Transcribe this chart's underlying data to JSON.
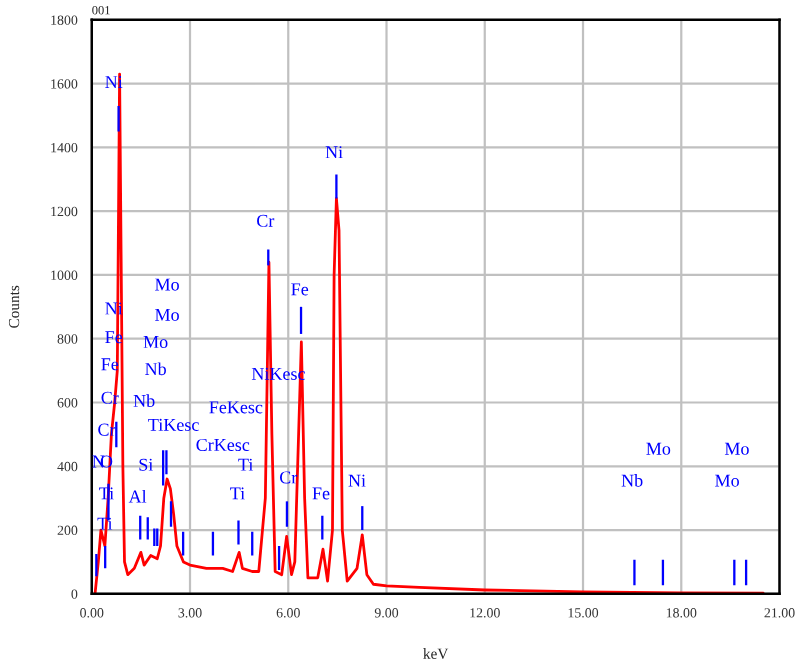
{
  "chart_data": {
    "type": "line",
    "title": "001",
    "xlabel": "keV",
    "ylabel": "Counts",
    "xlim": [
      0,
      21
    ],
    "ylim": [
      0,
      1800
    ],
    "xticks": [
      {
        "value": 0,
        "label": "0.00"
      },
      {
        "value": 3,
        "label": "3.00"
      },
      {
        "value": 6,
        "label": "6.00"
      },
      {
        "value": 9,
        "label": "9.00"
      },
      {
        "value": 12,
        "label": "12.00"
      },
      {
        "value": 15,
        "label": "15.00"
      },
      {
        "value": 18,
        "label": "18.00"
      },
      {
        "value": 21,
        "label": "21.00"
      }
    ],
    "yticks": [
      0,
      200,
      400,
      600,
      800,
      1000,
      1200,
      1400,
      1600,
      1800
    ],
    "grid": true,
    "legend": false,
    "series": [
      {
        "color": "#ff0000",
        "x": [
          0.1,
          0.2,
          0.28,
          0.4,
          0.5,
          0.6,
          0.7,
          0.78,
          0.85,
          0.95,
          1.0,
          1.1,
          1.3,
          1.5,
          1.6,
          1.8,
          2.0,
          2.1,
          2.2,
          2.3,
          2.4,
          2.5,
          2.6,
          2.8,
          3.0,
          3.5,
          4.0,
          4.3,
          4.5,
          4.6,
          4.9,
          5.1,
          5.3,
          5.41,
          5.5,
          5.6,
          5.8,
          5.95,
          6.1,
          6.2,
          6.4,
          6.5,
          6.6,
          6.9,
          7.06,
          7.2,
          7.35,
          7.4,
          7.47,
          7.55,
          7.65,
          7.8,
          8.1,
          8.26,
          8.4,
          8.6,
          9.0,
          10.0,
          12.0,
          15.0,
          18.0,
          20.5
        ],
        "values": [
          0,
          100,
          200,
          150,
          300,
          500,
          600,
          700,
          1630,
          400,
          100,
          60,
          80,
          130,
          90,
          120,
          110,
          150,
          300,
          360,
          330,
          250,
          150,
          100,
          90,
          80,
          80,
          70,
          130,
          80,
          70,
          70,
          300,
          1040,
          500,
          70,
          60,
          180,
          60,
          100,
          790,
          300,
          50,
          50,
          140,
          40,
          200,
          1000,
          1240,
          1140,
          200,
          40,
          80,
          185,
          60,
          30,
          25,
          20,
          12,
          6,
          3,
          2
        ]
      },
      {
        "type": "bar",
        "color": "#0000ff",
        "x": [
          0.14,
          0.41,
          0.51,
          0.75,
          0.82,
          1.48,
          1.71,
          1.91,
          2.0,
          2.18,
          2.28,
          2.42,
          2.79,
          3.7,
          4.48,
          4.9,
          5.39,
          5.72,
          5.96,
          6.39,
          7.04,
          7.47,
          8.26,
          16.57,
          17.44,
          19.62,
          19.98
        ],
        "base": [
          55,
          80,
          230,
          460,
          1450,
          170,
          170,
          150,
          150,
          340,
          375,
          210,
          120,
          120,
          155,
          120,
          1030,
          75,
          210,
          815,
          170,
          1240,
          200,
          27,
          27,
          27,
          27
        ],
        "values": [
          70,
          70,
          115,
          80,
          80,
          75,
          70,
          55,
          55,
          110,
          75,
          80,
          75,
          75,
          75,
          75,
          50,
          75,
          80,
          85,
          75,
          75,
          75,
          80,
          80,
          80,
          80
        ]
      }
    ],
    "annotations": [
      "Ni",
      "Ni",
      "Fe",
      "Fe",
      "Cr",
      "Cr",
      "N",
      "O",
      "Ti",
      "Ti",
      "Al",
      "Si",
      "Mo",
      "Mo",
      "Mo",
      "Nb",
      "Nb",
      "TiKesc",
      "CrKesc",
      "FeKesc",
      "NiKesc",
      "Ti",
      "Ti",
      "Cr",
      "Cr",
      "Fe",
      "Fe",
      "Ni",
      "Ni",
      "Nb",
      "Mo",
      "Mo",
      "Mo"
    ]
  }
}
